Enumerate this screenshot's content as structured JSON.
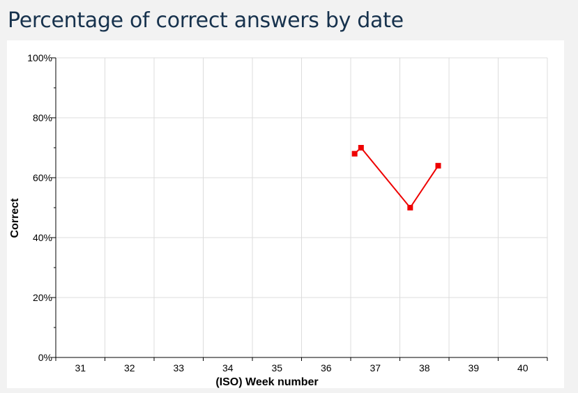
{
  "page": {
    "title": "Percentage of correct answers by date"
  },
  "chart_data": {
    "type": "line",
    "title": "Percentage of correct answers by date",
    "xlabel": "(ISO) Week number",
    "ylabel": "Correct",
    "xlim": [
      30.5,
      40.5
    ],
    "ylim": [
      0,
      100
    ],
    "x_ticks": [
      31,
      32,
      33,
      34,
      35,
      36,
      37,
      38,
      39,
      40
    ],
    "y_ticks": [
      0,
      20,
      40,
      60,
      80,
      100
    ],
    "y_tick_suffix": "%",
    "grid": true,
    "legend": "none",
    "series": [
      {
        "color": "#ee0000",
        "x": [
          36.58,
          36.71,
          37.71,
          38.28
        ],
        "y": [
          68,
          70,
          50,
          64
        ]
      }
    ]
  }
}
